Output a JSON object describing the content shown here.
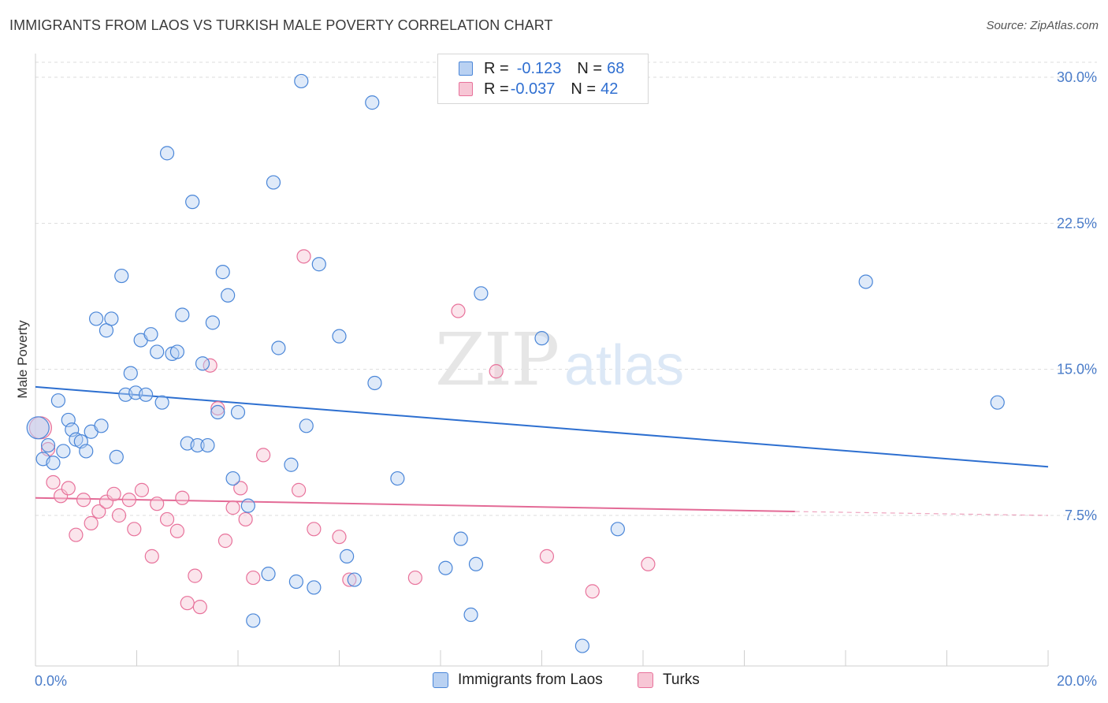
{
  "title": "IMMIGRANTS FROM LAOS VS TURKISH MALE POVERTY CORRELATION CHART",
  "source": "Source: ZipAtlas.com",
  "watermark": {
    "zip": "ZIP",
    "atlas": "atlas"
  },
  "colors": {
    "blue": "#4a86d8",
    "blue_fill": "#b9d1f2",
    "pink": "#e8729b",
    "pink_fill": "#f7c6d5",
    "trend_blue": "#2d6fd0",
    "trend_pink": "#e36a96",
    "grid": "#dddddd"
  },
  "legend": [
    {
      "r_label": "R = ",
      "r_value": "-0.123",
      "n_label": "N = ",
      "n_value": "68"
    },
    {
      "r_label": "R = ",
      "r_value": "-0.037",
      "n_label": "N = ",
      "n_value": "42"
    }
  ],
  "bottom_legend": [
    "Immigrants from Laos",
    "Turks"
  ],
  "chart_data": {
    "type": "scatter",
    "title": "IMMIGRANTS FROM LAOS VS TURKISH MALE POVERTY CORRELATION CHART",
    "xlabel": "",
    "ylabel": "Male Poverty",
    "xlim": [
      0,
      20
    ],
    "ylim": [
      0,
      31
    ],
    "x_ticks": [
      "0.0%",
      "20.0%"
    ],
    "y_ticks": [
      {
        "value": 7.5,
        "label": "7.5%"
      },
      {
        "value": 15.0,
        "label": "15.0%"
      },
      {
        "value": 22.5,
        "label": "22.5%"
      },
      {
        "value": 30.0,
        "label": "30.0%"
      }
    ],
    "grid": true,
    "legend_position": "top-center",
    "series": [
      {
        "name": "Immigrants from Laos",
        "r": -0.123,
        "n": 68,
        "trend": {
          "x": [
            0,
            20
          ],
          "y": [
            14.1,
            10.0
          ]
        },
        "points": [
          [
            0.05,
            12.0
          ],
          [
            0.15,
            10.4
          ],
          [
            0.25,
            11.1
          ],
          [
            0.35,
            10.2
          ],
          [
            0.45,
            13.4
          ],
          [
            0.55,
            10.8
          ],
          [
            0.65,
            12.4
          ],
          [
            0.72,
            11.9
          ],
          [
            0.8,
            11.4
          ],
          [
            0.9,
            11.3
          ],
          [
            1.0,
            10.8
          ],
          [
            1.1,
            11.8
          ],
          [
            1.2,
            17.6
          ],
          [
            1.3,
            12.1
          ],
          [
            1.4,
            17.0
          ],
          [
            1.5,
            17.6
          ],
          [
            1.6,
            10.5
          ],
          [
            1.7,
            19.8
          ],
          [
            1.78,
            13.7
          ],
          [
            1.88,
            14.8
          ],
          [
            1.98,
            13.8
          ],
          [
            2.08,
            16.5
          ],
          [
            2.18,
            13.7
          ],
          [
            2.28,
            16.8
          ],
          [
            2.4,
            15.9
          ],
          [
            2.5,
            13.3
          ],
          [
            2.6,
            26.1
          ],
          [
            2.7,
            15.8
          ],
          [
            2.8,
            15.9
          ],
          [
            2.9,
            17.8
          ],
          [
            3.0,
            11.2
          ],
          [
            3.1,
            23.6
          ],
          [
            3.2,
            11.1
          ],
          [
            3.3,
            15.3
          ],
          [
            3.4,
            11.1
          ],
          [
            3.5,
            17.4
          ],
          [
            3.6,
            12.8
          ],
          [
            3.7,
            20.0
          ],
          [
            3.8,
            18.8
          ],
          [
            3.9,
            9.4
          ],
          [
            4.0,
            12.8
          ],
          [
            4.2,
            8.0
          ],
          [
            4.3,
            2.1
          ],
          [
            4.6,
            4.5
          ],
          [
            4.7,
            24.6
          ],
          [
            4.8,
            16.1
          ],
          [
            5.05,
            10.1
          ],
          [
            5.15,
            4.1
          ],
          [
            5.25,
            29.8
          ],
          [
            5.35,
            12.1
          ],
          [
            5.5,
            3.8
          ],
          [
            5.6,
            20.4
          ],
          [
            6.0,
            16.7
          ],
          [
            6.15,
            5.4
          ],
          [
            6.3,
            4.2
          ],
          [
            6.7,
            14.3
          ],
          [
            6.65,
            28.7
          ],
          [
            7.15,
            9.4
          ],
          [
            8.1,
            4.8
          ],
          [
            8.4,
            6.3
          ],
          [
            8.6,
            2.4
          ],
          [
            8.7,
            5.0
          ],
          [
            8.8,
            18.9
          ],
          [
            10.0,
            16.6
          ],
          [
            10.8,
            0.8
          ],
          [
            11.5,
            6.8
          ],
          [
            16.4,
            19.5
          ],
          [
            19.0,
            13.3
          ]
        ]
      },
      {
        "name": "Turks",
        "r": -0.037,
        "n": 42,
        "trend": {
          "x": [
            0,
            15.0
          ],
          "y": [
            8.4,
            7.7
          ],
          "dashed_to": {
            "x": 20,
            "y": 7.5
          }
        },
        "points": [
          [
            0.1,
            12.0
          ],
          [
            0.25,
            10.9
          ],
          [
            0.35,
            9.2
          ],
          [
            0.5,
            8.5
          ],
          [
            0.65,
            8.9
          ],
          [
            0.8,
            6.5
          ],
          [
            0.95,
            8.3
          ],
          [
            1.1,
            7.1
          ],
          [
            1.25,
            7.7
          ],
          [
            1.4,
            8.2
          ],
          [
            1.55,
            8.6
          ],
          [
            1.65,
            7.5
          ],
          [
            1.85,
            8.3
          ],
          [
            1.95,
            6.8
          ],
          [
            2.1,
            8.8
          ],
          [
            2.3,
            5.4
          ],
          [
            2.4,
            8.1
          ],
          [
            2.6,
            7.3
          ],
          [
            2.8,
            6.7
          ],
          [
            2.9,
            8.4
          ],
          [
            3.0,
            3.0
          ],
          [
            3.15,
            4.4
          ],
          [
            3.25,
            2.8
          ],
          [
            3.45,
            15.2
          ],
          [
            3.6,
            13.0
          ],
          [
            3.75,
            6.2
          ],
          [
            3.9,
            7.9
          ],
          [
            4.05,
            8.9
          ],
          [
            4.15,
            7.3
          ],
          [
            4.3,
            4.3
          ],
          [
            4.5,
            10.6
          ],
          [
            5.2,
            8.8
          ],
          [
            5.3,
            20.8
          ],
          [
            5.5,
            6.8
          ],
          [
            6.0,
            6.4
          ],
          [
            6.2,
            4.2
          ],
          [
            7.5,
            4.3
          ],
          [
            8.35,
            18.0
          ],
          [
            9.1,
            14.9
          ],
          [
            10.1,
            5.4
          ],
          [
            11.0,
            3.6
          ],
          [
            12.1,
            5.0
          ]
        ]
      }
    ]
  }
}
